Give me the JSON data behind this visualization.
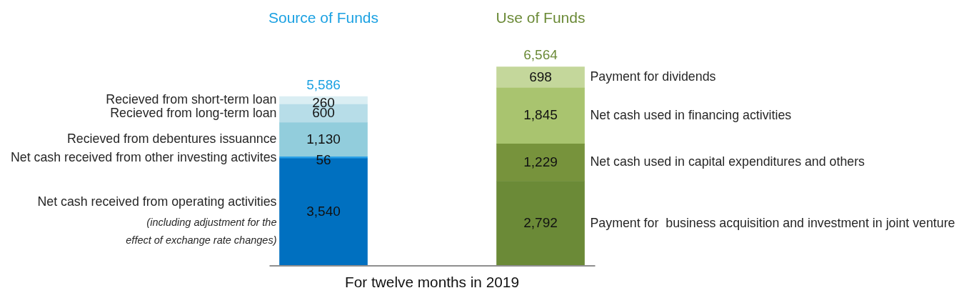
{
  "chart_data": {
    "type": "bar",
    "stacked": true,
    "categories": [
      "Source of Funds",
      "Use of Funds"
    ],
    "xlabel": "For twelve months in 2019",
    "series": [
      {
        "name": "Net cash received from operating activities",
        "color": "#0070c0",
        "values": [
          3540,
          null
        ],
        "value_labels": [
          "3,540",
          null
        ]
      },
      {
        "name": "Net cash received from other investing activites",
        "color": "#2aa0e6",
        "values": [
          56,
          null
        ],
        "value_labels": [
          "56",
          null
        ]
      },
      {
        "name": "Recieved from debentures issuannce",
        "color": "#92cddc",
        "values": [
          1130,
          null
        ],
        "value_labels": [
          "1,130",
          null
        ]
      },
      {
        "name": "Recieved from long-term loan",
        "color": "#b7dde8",
        "values": [
          600,
          null
        ],
        "value_labels": [
          "600",
          null
        ]
      },
      {
        "name": "Recieved from short-term loan",
        "color": "#daeef3",
        "values": [
          260,
          null
        ],
        "value_labels": [
          "260",
          null
        ]
      },
      {
        "name": "Payment for  business acquisition and investment in joint venture",
        "color": "#6b8a37",
        "values": [
          null,
          2792
        ],
        "value_labels": [
          null,
          "2,792"
        ]
      },
      {
        "name": "Net cash used in capital expenditures and others",
        "color": "#77933c",
        "values": [
          null,
          1229
        ],
        "value_labels": [
          null,
          "1,229"
        ]
      },
      {
        "name": "Net cash used in financing activities",
        "color": "#a9c46f",
        "values": [
          null,
          1845
        ],
        "value_labels": [
          null,
          "1,845"
        ]
      },
      {
        "name": "Payment for dividends",
        "color": "#c4d79b",
        "values": [
          null,
          698
        ],
        "value_labels": [
          null,
          "698"
        ]
      }
    ],
    "totals": [
      "5,586",
      "6,564"
    ],
    "annotations": [
      "(including adjustment for the effect of exchange rate changes)"
    ]
  }
}
